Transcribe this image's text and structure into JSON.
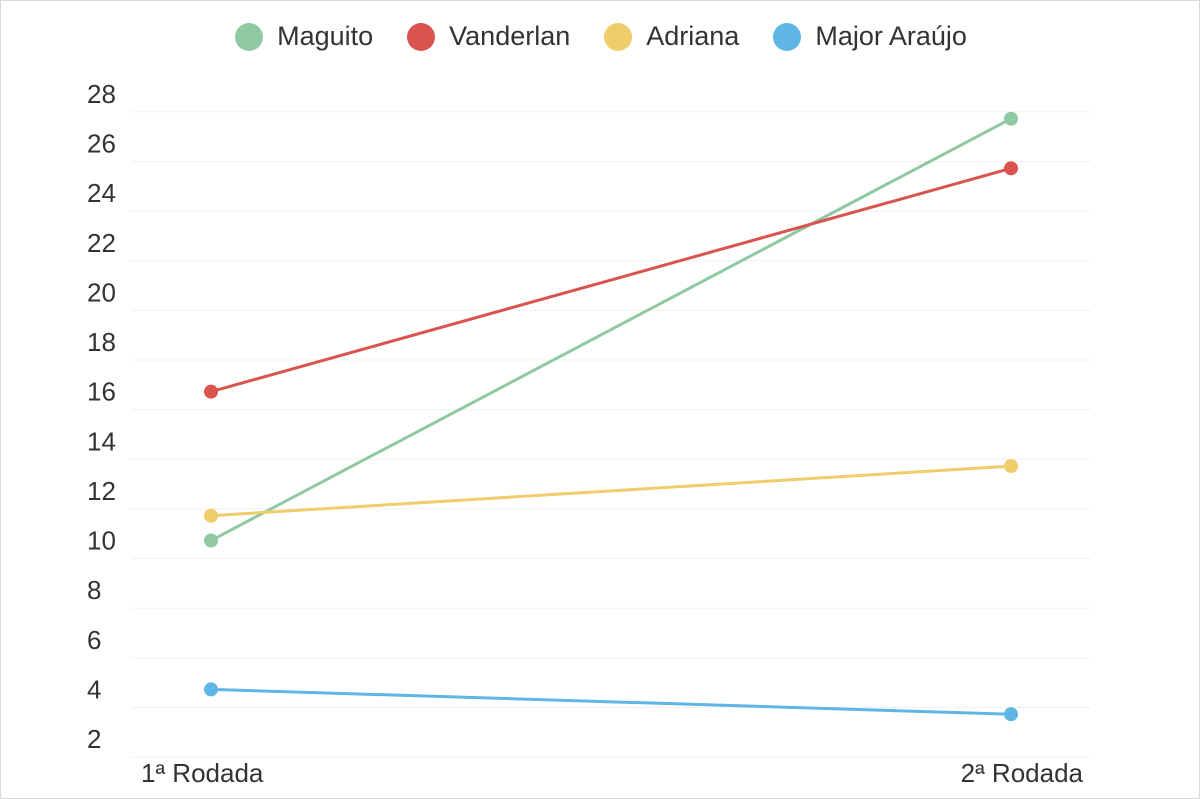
{
  "chart_data": {
    "type": "line",
    "categories": [
      "1ª Rodada",
      "2ª Rodada"
    ],
    "series": [
      {
        "name": "Maguito",
        "values": [
          10,
          27
        ],
        "color": "#8fc9a2"
      },
      {
        "name": "Vanderlan",
        "values": [
          16,
          25
        ],
        "color": "#d9534f"
      },
      {
        "name": "Adriana",
        "values": [
          11,
          13
        ],
        "color": "#f0cc6a"
      },
      {
        "name": "Major Araújo",
        "values": [
          4,
          3
        ],
        "color": "#5eb6e4"
      }
    ],
    "yticks": [
      2,
      4,
      6,
      8,
      10,
      12,
      14,
      16,
      18,
      20,
      22,
      24,
      26,
      28
    ],
    "ylim": [
      1.8,
      28.6
    ],
    "grid": true,
    "legend_position": "top-center"
  }
}
